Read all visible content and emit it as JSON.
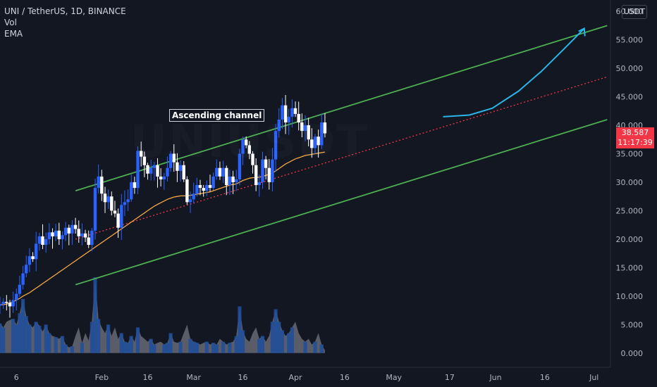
{
  "header": {
    "symbol_line": "UNI / TetherUS, 1D, BINANCE",
    "indicators": [
      "Vol",
      "EMA"
    ],
    "currency_button": "USDT"
  },
  "watermark": "UNIUSDT",
  "price_tag": {
    "price": "38.587",
    "countdown": "11:17:39"
  },
  "annotation": "Ascending channel",
  "colors": {
    "background": "#131722",
    "up_candle": "#2962ff",
    "down_candle": "#ffffff",
    "channel": "#4caf50",
    "midline": "#f23645",
    "ema": "#f5a742",
    "projection_arrow": "#2ab5e8",
    "volume": "#9598a1",
    "axis_text": "#b2b5be"
  },
  "chart_data": {
    "type": "candlestick",
    "title": "UNI / TetherUS, 1D, BINANCE",
    "ylim": [
      -2.5,
      62
    ],
    "y_ticks": [
      "60.000",
      "55.000",
      "50.000",
      "45.000",
      "40.000",
      "35.000",
      "30.000",
      "25.000",
      "20.000",
      "15.000",
      "10.000",
      "5.000",
      "0.000"
    ],
    "y_tick_values": [
      60,
      55,
      50,
      45,
      40,
      35,
      30,
      25,
      20,
      15,
      10,
      5,
      0
    ],
    "x_ticks": [
      "6",
      "Feb",
      "16",
      "Mar",
      "16",
      "Apr",
      "16",
      "May",
      "17",
      "Jun",
      "16",
      "Jul"
    ],
    "x_tick_days": [
      5,
      31,
      45,
      59,
      74,
      90,
      105,
      120,
      137,
      151,
      166,
      181
    ],
    "x_range_days": [
      0,
      186
    ],
    "last_price": 38.587,
    "closes": [
      8.6,
      9.0,
      8.8,
      8.2,
      9.3,
      10.4,
      12.0,
      14.0,
      15.5,
      17.0,
      16.5,
      19.2,
      20.5,
      19.0,
      20.0,
      21.2,
      20.5,
      21.5,
      20.0,
      20.7,
      22.0,
      21.0,
      22.5,
      21.8,
      20.5,
      21.0,
      20.3,
      19.0,
      21.5,
      29.0,
      31.0,
      28.0,
      26.5,
      27.5,
      25.0,
      24.5,
      22.0,
      26.0,
      26.5,
      27.0,
      30.0,
      29.0,
      35.5,
      34.5,
      33.0,
      31.5,
      32.5,
      33.0,
      31.0,
      30.5,
      31.0,
      32.5,
      35.0,
      33.5,
      32.0,
      33.0,
      30.5,
      26.5,
      27.0,
      28.0,
      29.5,
      29.0,
      28.5,
      29.5,
      29.0,
      31.0,
      32.5,
      31.0,
      32.5,
      29.5,
      31.0,
      30.0,
      30.5,
      35.0,
      37.5,
      36.5,
      35.0,
      33.0,
      29.5,
      30.0,
      34.0,
      32.5,
      30.0,
      34.0,
      39.0,
      41.0,
      43.5,
      40.5,
      41.5,
      43.0,
      42.0,
      40.5,
      39.0,
      40.0,
      37.5,
      36.0,
      38.0,
      36.5,
      40.5,
      38.587
    ],
    "series": [
      {
        "name": "Vol",
        "type": "area",
        "values": [
          5.2,
          4.5,
          5.5,
          5.8,
          6.0,
          5.0,
          7.0,
          9.5,
          6.5,
          5.0,
          4.5,
          5.5,
          4.8,
          3.8,
          5.0,
          3.5,
          3.0,
          2.8,
          2.5,
          3.0,
          1.5,
          1.0,
          1.2,
          3.0,
          4.5,
          1.8,
          3.5,
          2.2,
          5.5,
          13.3,
          6.0,
          4.5,
          3.5,
          5.0,
          3.0,
          4.5,
          2.5,
          3.5,
          2.0,
          1.8,
          3.0,
          2.0,
          4.5,
          3.0,
          2.5,
          2.0,
          2.5,
          1.5,
          1.8,
          2.0,
          1.5,
          1.8,
          3.5,
          2.0,
          1.8,
          2.0,
          3.5,
          5.0,
          2.5,
          2.0,
          1.8,
          1.5,
          1.8,
          2.0,
          1.5,
          1.8,
          1.5,
          2.5,
          2.0,
          1.5,
          1.8,
          2.0,
          3.0,
          8.2,
          4.0,
          2.5,
          2.0,
          3.5,
          4.5,
          2.5,
          3.0,
          2.0,
          3.0,
          5.5,
          7.7,
          5.5,
          4.0,
          3.0,
          3.5,
          4.5,
          5.5,
          3.5,
          2.5,
          2.0,
          2.5,
          1.5,
          2.0,
          3.5,
          1.5,
          0.5
        ]
      },
      {
        "name": "EMA",
        "type": "line",
        "values": [
          8.5,
          8.5,
          8.6,
          8.8,
          9.0,
          9.3,
          9.6,
          10.0,
          10.3,
          10.6,
          11.0,
          11.4,
          11.8,
          12.2,
          12.6,
          13.0,
          13.4,
          13.8,
          14.2,
          14.6,
          15.0,
          15.4,
          15.8,
          16.2,
          16.6,
          17.0,
          17.4,
          17.8,
          18.2,
          18.6,
          19.0,
          19.4,
          19.8,
          20.2,
          20.6,
          21.0,
          21.4,
          21.8,
          22.2,
          22.6,
          23.0,
          23.4,
          23.8,
          24.2,
          24.6,
          25.0,
          25.4,
          25.8,
          26.1,
          26.4,
          26.7,
          27.0,
          27.2,
          27.4,
          27.5,
          27.6,
          27.6,
          27.6,
          27.7,
          27.8,
          27.9,
          28.0,
          28.1,
          28.2,
          28.3,
          28.5,
          28.7,
          28.9,
          29.1,
          29.3,
          29.5,
          29.6,
          29.7,
          30.0,
          30.3,
          30.5,
          30.7,
          30.8,
          30.8,
          30.9,
          31.0,
          31.2,
          31.4,
          31.6,
          32.0,
          32.4,
          32.8,
          33.2,
          33.5,
          33.8,
          34.1,
          34.3,
          34.5,
          34.7,
          34.8,
          34.9,
          35.0,
          35.1,
          35.2,
          35.3
        ]
      }
    ],
    "channel_lines": [
      {
        "name": "upper",
        "x": [
          23,
          185
        ],
        "y": [
          28.5,
          57.5
        ]
      },
      {
        "name": "lower",
        "x": [
          23,
          185
        ],
        "y": [
          12.0,
          41.0
        ]
      },
      {
        "name": "mid",
        "x": [
          23,
          185
        ],
        "y": [
          20.0,
          48.5
        ]
      }
    ],
    "projection": {
      "x": [
        135,
        143,
        150,
        158,
        165,
        172,
        178
      ],
      "y": [
        41.5,
        41.8,
        43.0,
        46.0,
        49.5,
        53.5,
        57.0
      ]
    },
    "annotations": [
      "Ascending channel"
    ],
    "grid": false,
    "legend": "top-left"
  }
}
